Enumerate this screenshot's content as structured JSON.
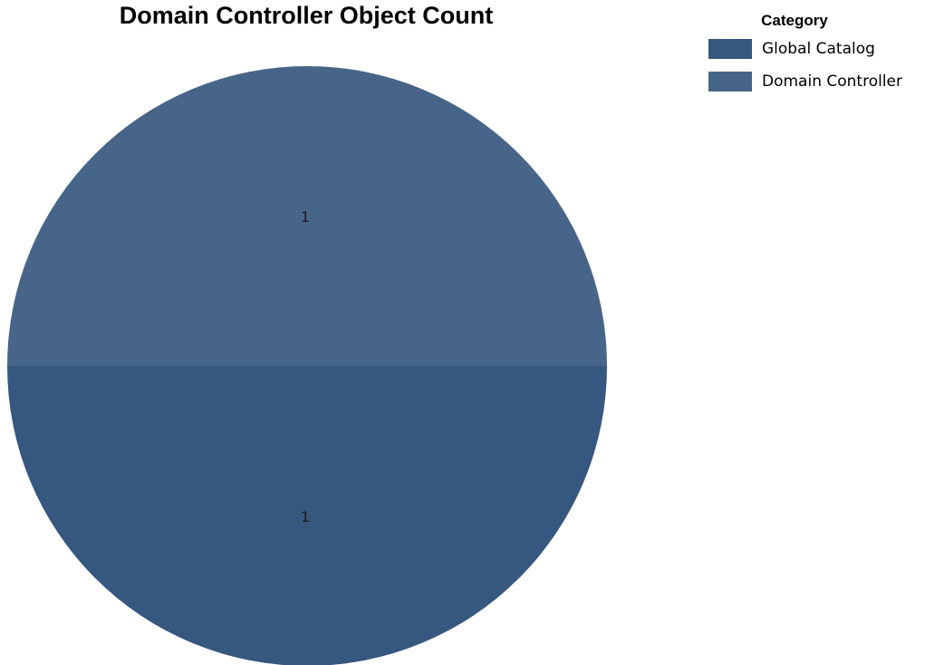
{
  "chart_data": {
    "type": "pie",
    "title": "Domain Controller Object Count",
    "legend_title": "Category",
    "legend_position": "top-right",
    "slices": [
      {
        "label": "Global Catalog",
        "value": 1,
        "color": "#36577f"
      },
      {
        "label": "Domain Controller",
        "value": 1,
        "color": "#476589"
      }
    ]
  }
}
